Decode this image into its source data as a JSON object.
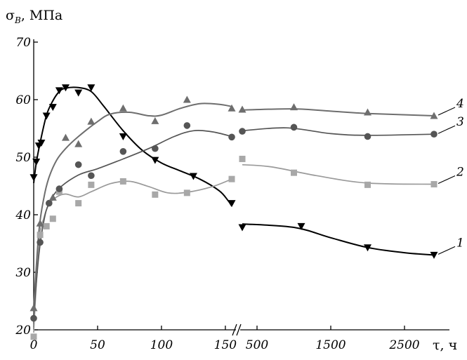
{
  "chart_data": {
    "type": "line",
    "ylabel": "σ_B, МПа",
    "ylabel_main": "σ",
    "ylabel_sub": "B",
    "ylabel_rest": ", МПа",
    "xlabel": "τ, ч",
    "ylim": [
      20,
      70
    ],
    "yticks": [
      20,
      30,
      40,
      50,
      60,
      70
    ],
    "xticks_left": [
      0,
      50,
      100,
      150
    ],
    "xticks_right": [
      500,
      1500,
      2500
    ],
    "xtick_labels": [
      "0",
      "50",
      "100",
      "150",
      "500",
      "1500",
      "2500"
    ],
    "x_axis_break": "150 // 500",
    "series": [
      {
        "name": "1",
        "color": "#000000",
        "marker": "triangle-down",
        "points": [
          [
            0,
            46.5
          ],
          [
            2,
            49.2
          ],
          [
            4,
            52.0
          ],
          [
            6,
            52.5
          ],
          [
            10,
            57.2
          ],
          [
            15,
            58.7
          ],
          [
            20,
            61.6
          ],
          [
            25,
            62.1
          ],
          [
            35,
            61.2
          ],
          [
            45,
            62.1
          ],
          [
            70,
            53.6
          ],
          [
            95,
            49.5
          ],
          [
            125,
            46.7
          ],
          [
            155,
            42.0
          ],
          [
            300,
            37.8
          ],
          [
            1100,
            38.0
          ],
          [
            2000,
            34.3
          ],
          [
            2900,
            33.0
          ]
        ],
        "curve": [
          [
            0,
            45.5
          ],
          [
            2,
            49
          ],
          [
            5,
            52.5
          ],
          [
            10,
            57.3
          ],
          [
            15,
            59.8
          ],
          [
            20,
            61.4
          ],
          [
            25,
            62.0
          ],
          [
            35,
            62.1
          ],
          [
            45,
            61.4
          ],
          [
            55,
            58.8
          ],
          [
            70,
            54.6
          ],
          [
            85,
            51.2
          ],
          [
            100,
            49.0
          ],
          [
            115,
            47.6
          ],
          [
            130,
            46.2
          ],
          [
            145,
            44.2
          ],
          [
            152,
            42.5
          ],
          [
            155,
            41.5
          ],
          [
            300,
            38.4
          ],
          [
            1000,
            37.8
          ],
          [
            1500,
            36.0
          ],
          [
            2000,
            34.3
          ],
          [
            2500,
            33.4
          ],
          [
            2900,
            33.0
          ]
        ]
      },
      {
        "name": "2",
        "color": "#9a9a9a",
        "marker": "square",
        "points": [
          [
            0,
            18.8
          ],
          [
            5,
            36.5
          ],
          [
            10,
            38.0
          ],
          [
            15,
            39.3
          ],
          [
            20,
            44.0
          ],
          [
            35,
            42.0
          ],
          [
            45,
            45.2
          ],
          [
            70,
            45.8
          ],
          [
            95,
            43.5
          ],
          [
            120,
            43.8
          ],
          [
            155,
            46.2
          ],
          [
            300,
            49.7
          ],
          [
            1000,
            47.3
          ],
          [
            2000,
            45.2
          ],
          [
            2900,
            45.3
          ]
        ],
        "curve": [
          [
            0,
            19.5
          ],
          [
            4,
            35
          ],
          [
            8,
            39.5
          ],
          [
            12,
            41.8
          ],
          [
            18,
            43.1
          ],
          [
            25,
            43.6
          ],
          [
            35,
            43.1
          ],
          [
            45,
            44.0
          ],
          [
            60,
            45.4
          ],
          [
            75,
            45.8
          ],
          [
            90,
            44.9
          ],
          [
            105,
            43.8
          ],
          [
            120,
            43.9
          ],
          [
            140,
            44.9
          ],
          [
            155,
            46.2
          ],
          [
            300,
            48.7
          ],
          [
            700,
            48.3
          ],
          [
            1300,
            46.8
          ],
          [
            2000,
            45.5
          ],
          [
            2900,
            45.3
          ]
        ]
      },
      {
        "name": "3",
        "color": "#555555",
        "marker": "circle",
        "points": [
          [
            0,
            22.0
          ],
          [
            5,
            35.2
          ],
          [
            12,
            42.0
          ],
          [
            20,
            44.5
          ],
          [
            35,
            48.7
          ],
          [
            45,
            46.8
          ],
          [
            70,
            51.0
          ],
          [
            95,
            51.5
          ],
          [
            120,
            55.5
          ],
          [
            155,
            53.5
          ],
          [
            300,
            54.5
          ],
          [
            1000,
            55.2
          ],
          [
            2000,
            53.6
          ],
          [
            2900,
            54.0
          ]
        ],
        "curve": [
          [
            0,
            22.5
          ],
          [
            4,
            33
          ],
          [
            8,
            39
          ],
          [
            12,
            42.0
          ],
          [
            20,
            44.6
          ],
          [
            35,
            46.9
          ],
          [
            50,
            48.0
          ],
          [
            70,
            49.7
          ],
          [
            90,
            51.5
          ],
          [
            110,
            53.6
          ],
          [
            125,
            54.6
          ],
          [
            140,
            54.4
          ],
          [
            155,
            53.6
          ],
          [
            300,
            54.6
          ],
          [
            900,
            55.1
          ],
          [
            1500,
            54.1
          ],
          [
            2000,
            53.8
          ],
          [
            2900,
            54.0
          ]
        ]
      },
      {
        "name": "4",
        "color": "#6e6e6e",
        "marker": "triangle-up",
        "points": [
          [
            0,
            23.8
          ],
          [
            5,
            38.5
          ],
          [
            15,
            43.0
          ],
          [
            25,
            53.4
          ],
          [
            35,
            52.3
          ],
          [
            45,
            56.2
          ],
          [
            70,
            58.5
          ],
          [
            95,
            56.3
          ],
          [
            120,
            60.0
          ],
          [
            155,
            58.5
          ],
          [
            300,
            58.3
          ],
          [
            1000,
            58.7
          ],
          [
            2000,
            57.8
          ],
          [
            2900,
            57.2
          ]
        ],
        "curve": [
          [
            0,
            24
          ],
          [
            4,
            37
          ],
          [
            8,
            43
          ],
          [
            12,
            46.5
          ],
          [
            18,
            49.5
          ],
          [
            25,
            51.5
          ],
          [
            35,
            53.6
          ],
          [
            50,
            56.2
          ],
          [
            60,
            57.5
          ],
          [
            75,
            57.8
          ],
          [
            90,
            57.2
          ],
          [
            100,
            57.3
          ],
          [
            115,
            58.5
          ],
          [
            130,
            59.3
          ],
          [
            145,
            59.2
          ],
          [
            155,
            58.8
          ],
          [
            300,
            58.2
          ],
          [
            1000,
            58.4
          ],
          [
            1500,
            58.0
          ],
          [
            2000,
            57.6
          ],
          [
            2900,
            57.2
          ]
        ]
      }
    ]
  }
}
